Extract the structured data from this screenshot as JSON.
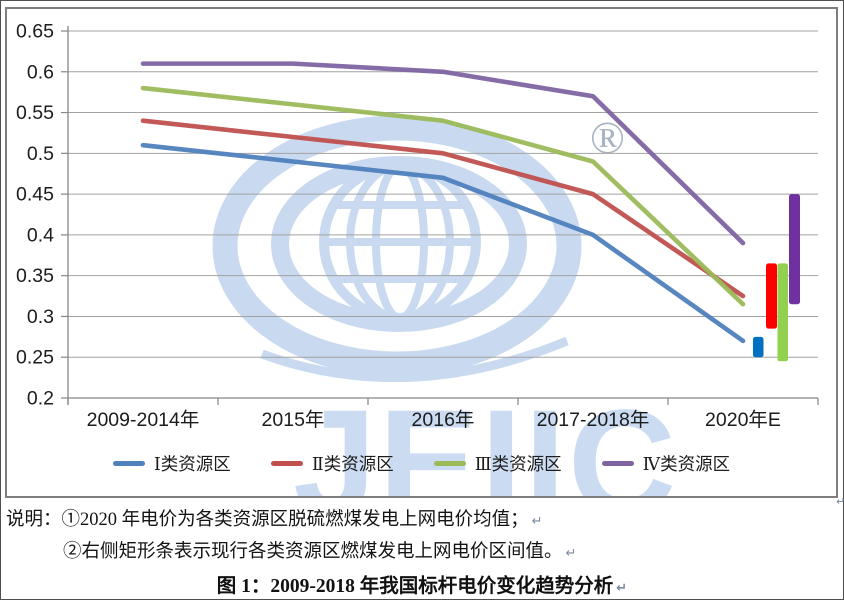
{
  "chart_data": {
    "type": "line",
    "title": "",
    "categories": [
      "2009-2014年",
      "2015年",
      "2016年",
      "2017-2018年",
      "2020年E"
    ],
    "series": [
      {
        "name": "Ⅰ类资源区",
        "color": "#4F81BD",
        "values": [
          0.51,
          0.49,
          0.47,
          0.4,
          0.27
        ]
      },
      {
        "name": "Ⅱ类资源区",
        "color": "#C0504D",
        "values": [
          0.54,
          0.52,
          0.5,
          0.45,
          0.325
        ]
      },
      {
        "name": "Ⅲ类资源区",
        "color": "#9BBB59",
        "values": [
          0.58,
          0.56,
          0.54,
          0.49,
          0.315
        ]
      },
      {
        "name": "Ⅳ类资源区",
        "color": "#8064A2",
        "values": [
          0.61,
          0.61,
          0.6,
          0.57,
          0.39
        ]
      }
    ],
    "range_bars": [
      {
        "name": "Ⅰ类资源区燃煤电价区间",
        "color": "#0070C0",
        "min": 0.25,
        "max": 0.275
      },
      {
        "name": "Ⅱ类资源区燃煤电价区间",
        "color": "#FF0000",
        "min": 0.285,
        "max": 0.365
      },
      {
        "name": "Ⅲ类资源区燃煤电价区间",
        "color": "#92D050",
        "min": 0.245,
        "max": 0.365
      },
      {
        "name": "Ⅳ类资源区燃煤电价区间",
        "color": "#7030A0",
        "min": 0.315,
        "max": 0.45
      }
    ],
    "ylim": [
      0.2,
      0.65
    ],
    "ytick_step": 0.05,
    "ytick_labels": [
      "0.65",
      "0.6",
      "0.55",
      "0.5",
      "0.45",
      "0.4",
      "0.35",
      "0.3",
      "0.25",
      "0.2"
    ],
    "xlabel": "",
    "ylabel": "",
    "grid": true,
    "legend_position": "bottom"
  },
  "watermark": {
    "text": "JEIIC",
    "registered_mark": "®"
  },
  "notes": {
    "label": "说明：",
    "line1": "①2020 年电价为各类资源区脱硫燃煤发电上网电价均值；",
    "line2": "②右侧矩形条表示现行各类资源区燃煤发电上网电价区间值。",
    "return_mark": "↵"
  },
  "caption": "图 1：2009-2018 年我国标杆电价变化趋势分析"
}
